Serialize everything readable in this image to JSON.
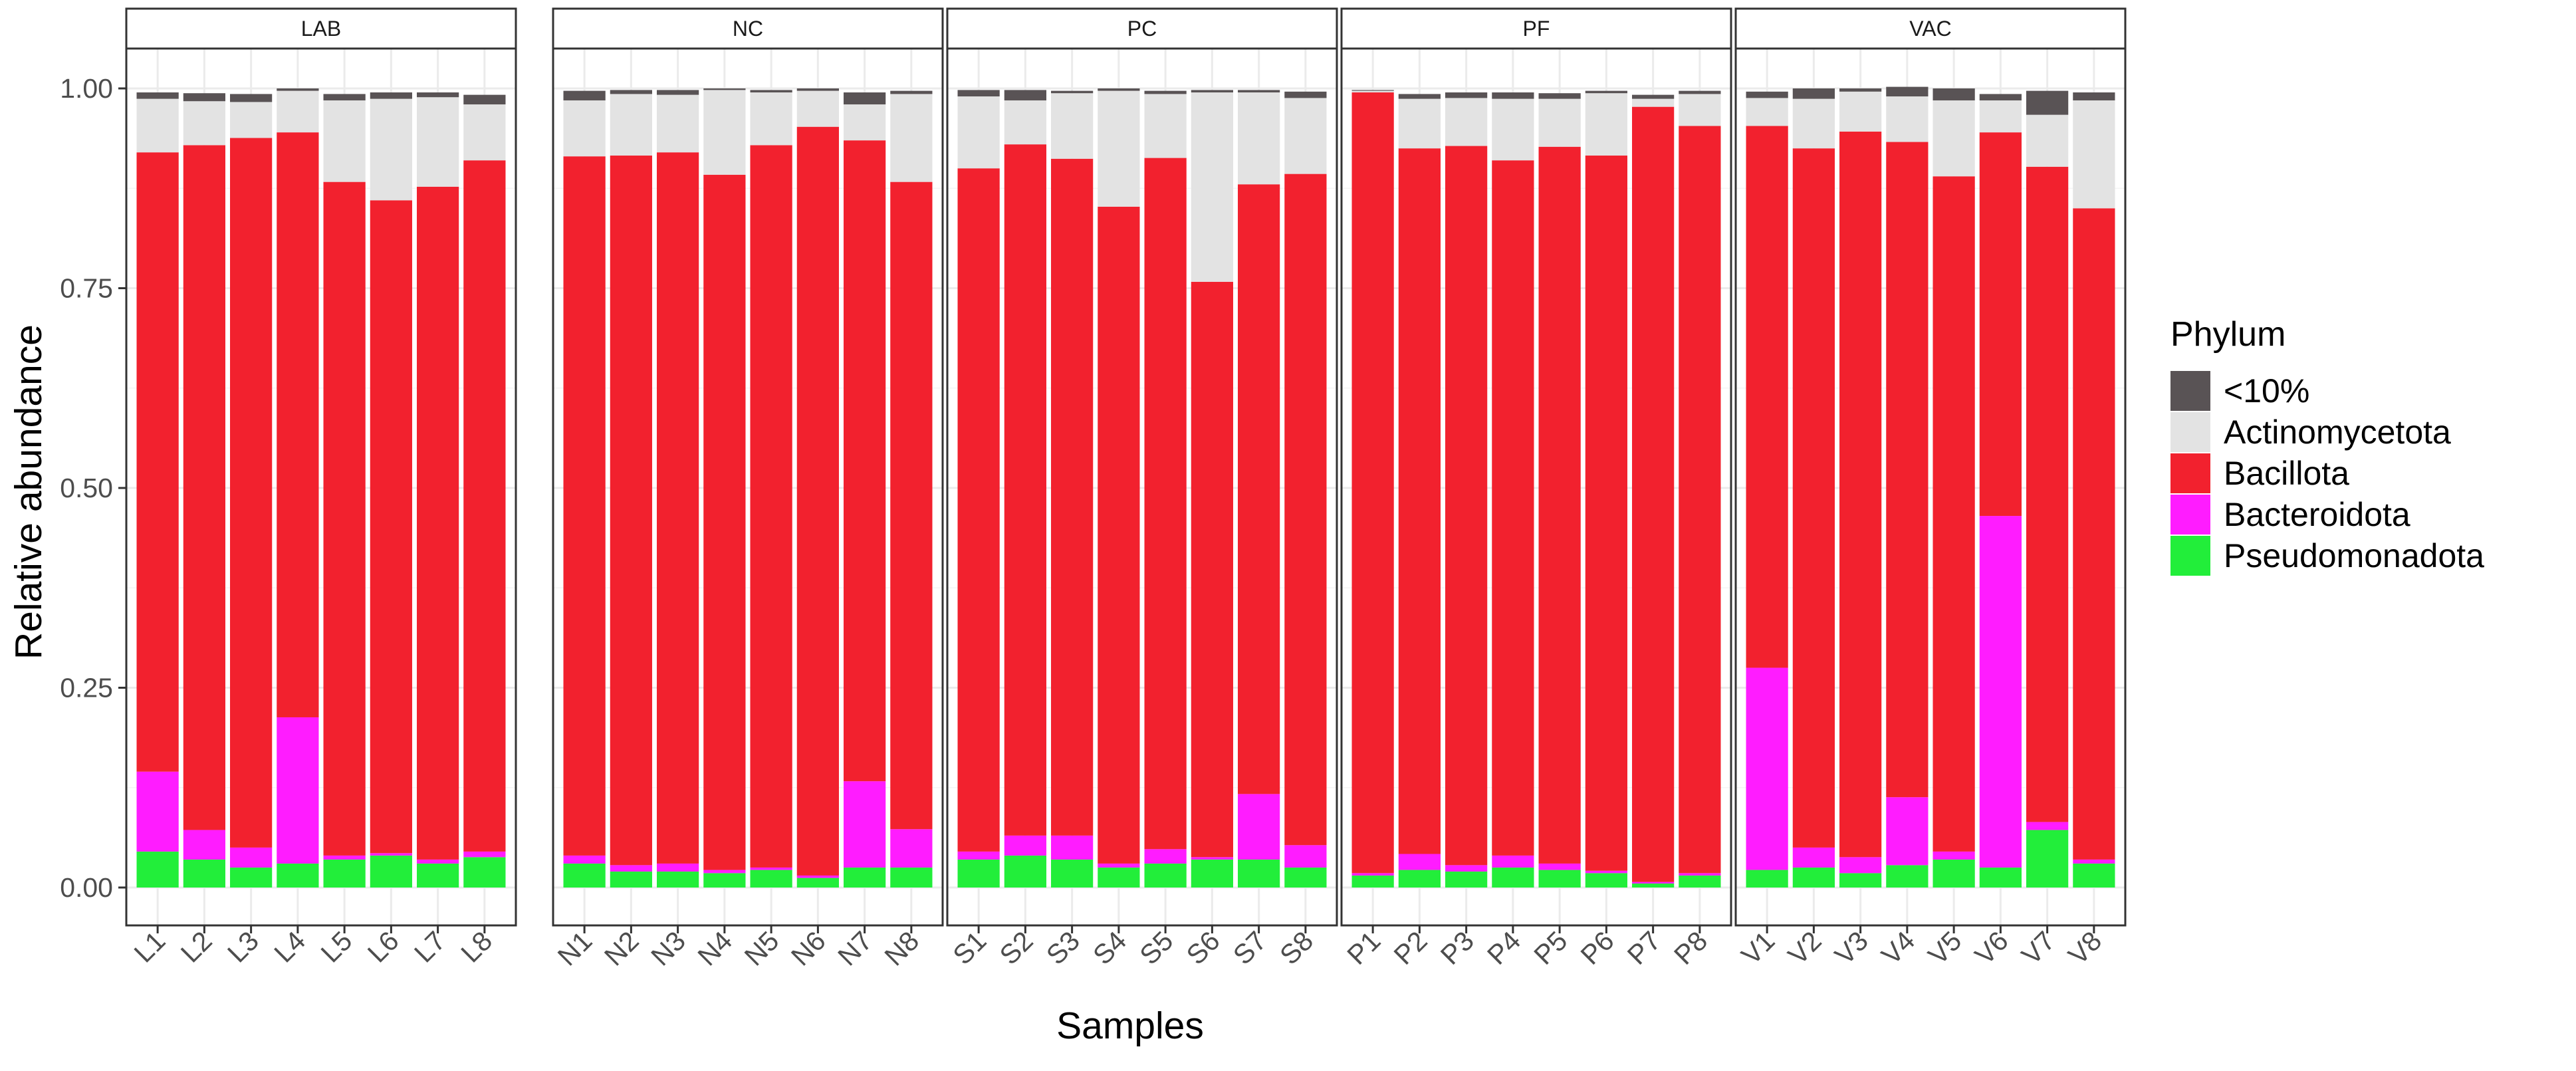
{
  "chart_data": {
    "type": "stacked-bar-faceted",
    "ylabel": "Relative abundance",
    "xlabel": "Samples",
    "ylim": [
      0,
      1
    ],
    "yticks": [
      0.0,
      0.25,
      0.5,
      0.75,
      1.0
    ],
    "ytick_labels": [
      "0.00",
      "0.25",
      "0.50",
      "0.75",
      "1.00"
    ],
    "legend": {
      "title": "Phylum",
      "position": "right",
      "entries": [
        {
          "name": "<10%",
          "color": "#595355"
        },
        {
          "name": "Actinomycetota",
          "color": "#e3e3e3"
        },
        {
          "name": "Bacillota",
          "color": "#f2212e"
        },
        {
          "name": "Bacteroidota",
          "color": "#ff1cff"
        },
        {
          "name": "Pseudomonadota",
          "color": "#22ee3a"
        }
      ]
    },
    "stack_order_bottom_to_top": [
      "Pseudomonadota",
      "Bacteroidota",
      "Bacillota",
      "Actinomycetota",
      "<10%"
    ],
    "facets": [
      {
        "label": "LAB",
        "samples": [
          "L1",
          "L2",
          "L3",
          "L4",
          "L5",
          "L6",
          "L7",
          "L8"
        ],
        "series": {
          "Pseudomonadota": [
            0.045,
            0.035,
            0.025,
            0.03,
            0.035,
            0.04,
            0.03,
            0.038
          ],
          "Bacteroidota": [
            0.1,
            0.037,
            0.025,
            0.183,
            0.005,
            0.003,
            0.005,
            0.007
          ],
          "Bacillota": [
            0.775,
            0.857,
            0.888,
            0.732,
            0.843,
            0.817,
            0.842,
            0.865
          ],
          "Actinomycetota": [
            0.067,
            0.055,
            0.045,
            0.052,
            0.102,
            0.127,
            0.112,
            0.07
          ],
          "<10%": [
            0.008,
            0.01,
            0.01,
            0.003,
            0.008,
            0.008,
            0.006,
            0.012
          ]
        }
      },
      {
        "label": "NC",
        "samples": [
          "N1",
          "N2",
          "N3",
          "N4",
          "N5",
          "N6",
          "N7",
          "N8"
        ],
        "series": {
          "Pseudomonadota": [
            0.03,
            0.02,
            0.02,
            0.018,
            0.022,
            0.012,
            0.025,
            0.025
          ],
          "Bacteroidota": [
            0.01,
            0.008,
            0.01,
            0.004,
            0.003,
            0.003,
            0.108,
            0.048
          ],
          "Bacillota": [
            0.875,
            0.888,
            0.89,
            0.87,
            0.904,
            0.937,
            0.802,
            0.81
          ],
          "Actinomycetota": [
            0.07,
            0.077,
            0.072,
            0.106,
            0.066,
            0.045,
            0.045,
            0.11
          ],
          "<10%": [
            0.012,
            0.005,
            0.006,
            0.002,
            0.003,
            0.003,
            0.015,
            0.004
          ]
        }
      },
      {
        "label": "PC",
        "samples": [
          "S1",
          "S2",
          "S3",
          "S4",
          "S5",
          "S6",
          "S7",
          "S8"
        ],
        "series": {
          "Pseudomonadota": [
            0.035,
            0.04,
            0.035,
            0.025,
            0.03,
            0.035,
            0.035,
            0.025
          ],
          "Bacteroidota": [
            0.01,
            0.025,
            0.03,
            0.005,
            0.018,
            0.003,
            0.082,
            0.028
          ],
          "Bacillota": [
            0.855,
            0.865,
            0.847,
            0.822,
            0.865,
            0.72,
            0.763,
            0.84
          ],
          "Actinomycetota": [
            0.09,
            0.055,
            0.082,
            0.145,
            0.08,
            0.237,
            0.115,
            0.095
          ],
          "<10%": [
            0.008,
            0.013,
            0.003,
            0.003,
            0.004,
            0.003,
            0.003,
            0.008
          ]
        }
      },
      {
        "label": "PF",
        "samples": [
          "P1",
          "P2",
          "P3",
          "P4",
          "P5",
          "P6",
          "P7",
          "P8"
        ],
        "series": {
          "Pseudomonadota": [
            0.015,
            0.022,
            0.02,
            0.025,
            0.022,
            0.018,
            0.005,
            0.015
          ],
          "Bacteroidota": [
            0.003,
            0.02,
            0.008,
            0.015,
            0.008,
            0.003,
            0.002,
            0.003
          ],
          "Bacillota": [
            0.977,
            0.883,
            0.9,
            0.87,
            0.897,
            0.895,
            0.97,
            0.935
          ],
          "Actinomycetota": [
            0.002,
            0.062,
            0.06,
            0.077,
            0.06,
            0.078,
            0.01,
            0.04
          ],
          "<10%": [
            0.001,
            0.006,
            0.007,
            0.008,
            0.007,
            0.003,
            0.005,
            0.004
          ]
        }
      },
      {
        "label": "VAC",
        "samples": [
          "V1",
          "V2",
          "V3",
          "V4",
          "V5",
          "V6",
          "V7",
          "V8"
        ],
        "series": {
          "Pseudomonadota": [
            0.022,
            0.025,
            0.018,
            0.028,
            0.035,
            0.025,
            0.072,
            0.03
          ],
          "Bacteroidota": [
            0.253,
            0.025,
            0.02,
            0.085,
            0.01,
            0.44,
            0.01,
            0.005
          ],
          "Bacillota": [
            0.678,
            0.875,
            0.908,
            0.82,
            0.845,
            0.48,
            0.82,
            0.815
          ],
          "Actinomycetota": [
            0.035,
            0.062,
            0.05,
            0.057,
            0.095,
            0.04,
            0.065,
            0.135
          ],
          "<10%": [
            0.008,
            0.013,
            0.004,
            0.012,
            0.015,
            0.008,
            0.03,
            0.01
          ]
        }
      }
    ]
  }
}
